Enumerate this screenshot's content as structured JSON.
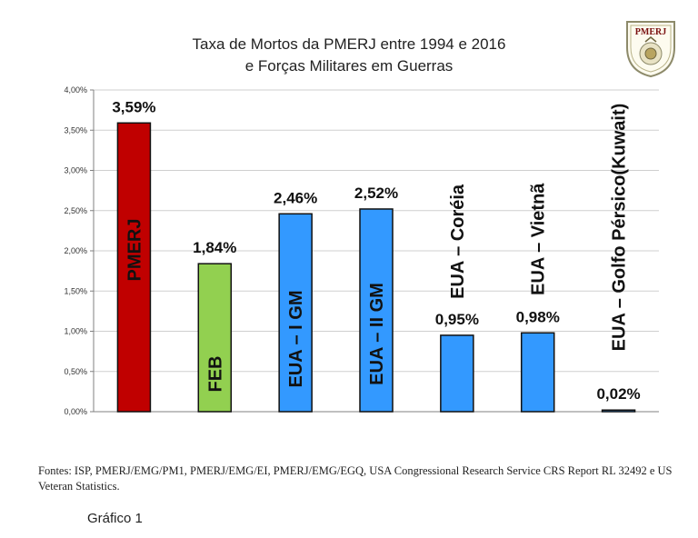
{
  "chart_data": {
    "type": "bar",
    "title": "Taxa de Mortos da PMERJ entre 1994 e 2016",
    "subtitle": "e Forças Militares em Guerras",
    "categories": [
      "PMERJ",
      "FEB",
      "EUA – I GM",
      "EUA – II GM",
      "EUA – Coréia",
      "EUA – Vietnã",
      "EUA – Golfo Pérsico(Kuwait)"
    ],
    "values": [
      3.59,
      1.84,
      2.46,
      2.52,
      0.95,
      0.98,
      0.02
    ],
    "value_labels": [
      "3,59%",
      "1,84%",
      "2,46%",
      "2,52%",
      "0,95%",
      "0,98%",
      "0,02%"
    ],
    "bar_colors": [
      "#c00000",
      "#92d050",
      "#3399ff",
      "#3399ff",
      "#3399ff",
      "#3399ff",
      "#3399ff"
    ],
    "ylim": [
      0,
      4
    ],
    "yticks": [
      "0,00%",
      "0,50%",
      "1,00%",
      "1,50%",
      "2,00%",
      "2,50%",
      "3,00%",
      "3,50%",
      "4,00%"
    ],
    "grid": true,
    "xlabel": "",
    "ylabel": ""
  },
  "logo": {
    "text": "PMERJ"
  },
  "source_note": "Fontes: ISP, PMERJ/EMG/PM1, PMERJ/EMG/EI, PMERJ/EMG/EGQ, USA Congressional Research Service CRS Report RL 32492 e US Veteran Statistics.",
  "caption": "Gráfico 1"
}
